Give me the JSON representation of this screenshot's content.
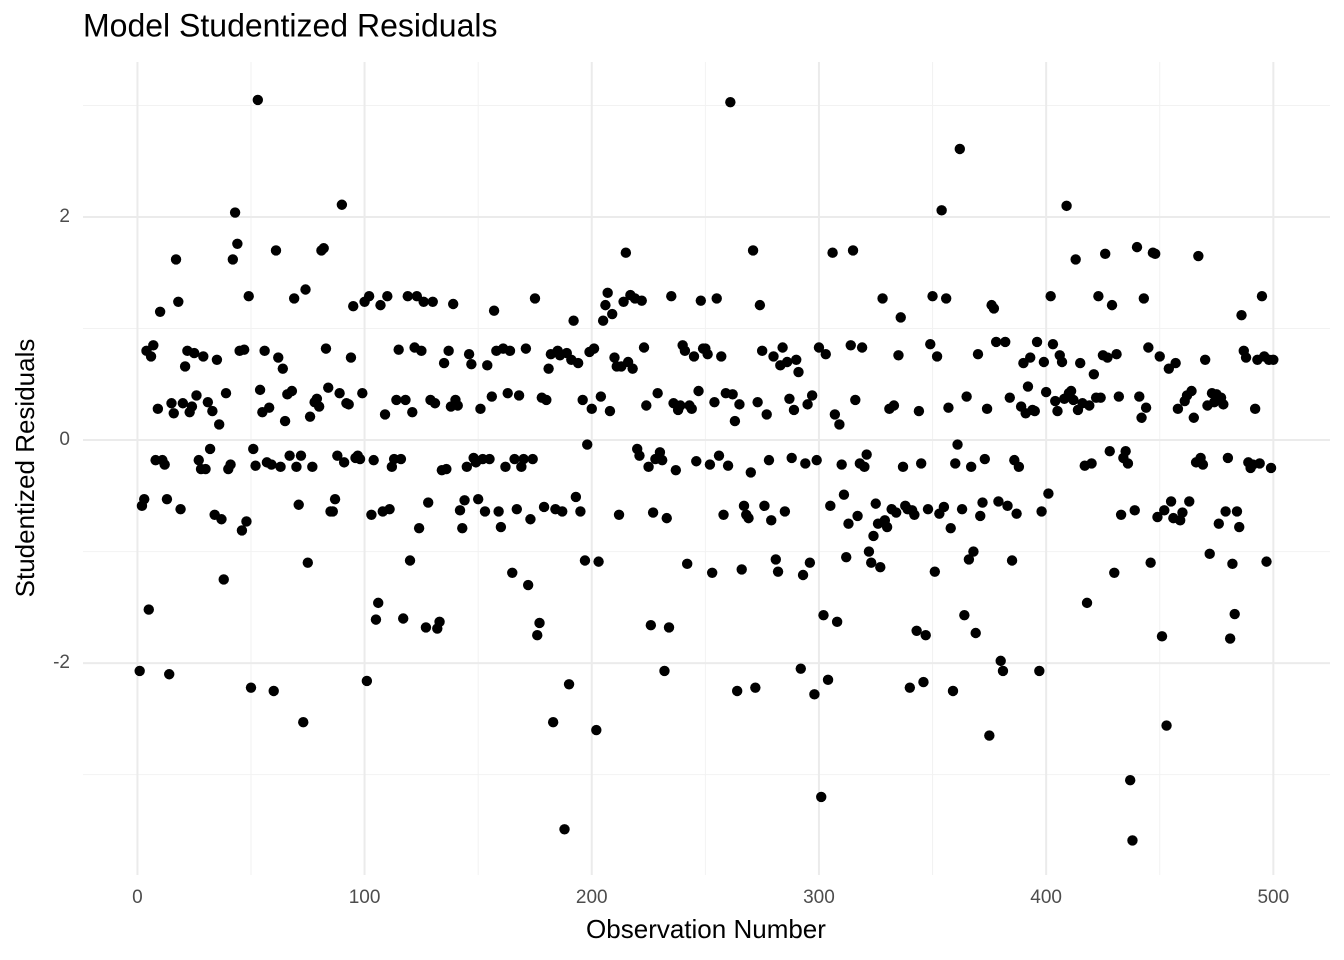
{
  "chart_data": {
    "type": "scatter",
    "title": "Model Studentized Residuals",
    "x_label": "Observation Number",
    "y_label": "Studentized Residuals",
    "color": "#000000",
    "grid": true,
    "xlim": [
      -23.95,
      524.95
    ],
    "ylim": [
      -3.9,
      3.39
    ],
    "xticks": [
      0,
      100,
      200,
      300,
      400,
      500
    ],
    "yticks": [
      -2,
      0,
      2
    ],
    "xminor": [
      50,
      150,
      250,
      350,
      450
    ],
    "yminor": [
      -3,
      -1,
      1,
      3
    ],
    "x": [
      1,
      2,
      3,
      4,
      5,
      6,
      7,
      8,
      9,
      10,
      11,
      12,
      13,
      14,
      15,
      16,
      17,
      18,
      19,
      20,
      21,
      22,
      23,
      24,
      25,
      26,
      27,
      28,
      29,
      30,
      31,
      32,
      33,
      34,
      35,
      36,
      37,
      38,
      39,
      40,
      41,
      42,
      43,
      44,
      45,
      46,
      47,
      48,
      49,
      50,
      51,
      52,
      53,
      54,
      55,
      56,
      57,
      58,
      59,
      60,
      61,
      62,
      63,
      64,
      65,
      66,
      67,
      68,
      69,
      70,
      71,
      72,
      73,
      74,
      75,
      76,
      77,
      78,
      79,
      80,
      81,
      82,
      83,
      84,
      85,
      86,
      87,
      88,
      89,
      90,
      91,
      92,
      93,
      94,
      95,
      96,
      97,
      98,
      99,
      100,
      101,
      102,
      103,
      104,
      105,
      106,
      107,
      108,
      109,
      110,
      111,
      112,
      113,
      114,
      115,
      116,
      117,
      118,
      119,
      120,
      121,
      122,
      123,
      124,
      125,
      126,
      127,
      128,
      129,
      130,
      131,
      132,
      133,
      134,
      135,
      136,
      137,
      138,
      139,
      140,
      141,
      142,
      143,
      144,
      145,
      146,
      147,
      148,
      149,
      150,
      151,
      152,
      153,
      154,
      155,
      156,
      157,
      158,
      159,
      160,
      161,
      162,
      163,
      164,
      165,
      166,
      167,
      168,
      169,
      170,
      171,
      172,
      173,
      174,
      175,
      176,
      177,
      178,
      179,
      180,
      181,
      182,
      183,
      184,
      185,
      186,
      187,
      188,
      189,
      190,
      191,
      192,
      193,
      194,
      195,
      196,
      197,
      198,
      199,
      200,
      201,
      202,
      203,
      204,
      205,
      206,
      207,
      208,
      209,
      210,
      211,
      212,
      213,
      214,
      215,
      216,
      217,
      218,
      219,
      220,
      221,
      222,
      223,
      224,
      225,
      226,
      227,
      228,
      229,
      230,
      231,
      232,
      233,
      234,
      235,
      236,
      237,
      238,
      239,
      240,
      241,
      242,
      243,
      244,
      245,
      246,
      247,
      248,
      249,
      250,
      251,
      252,
      253,
      254,
      255,
      256,
      257,
      258,
      259,
      260,
      261,
      262,
      263,
      264,
      265,
      266,
      267,
      268,
      269,
      270,
      271,
      272,
      273,
      274,
      275,
      276,
      277,
      278,
      279,
      280,
      281,
      282,
      283,
      284,
      285,
      286,
      287,
      288,
      289,
      290,
      291,
      292,
      293,
      294,
      295,
      296,
      297,
      298,
      299,
      300,
      301,
      302,
      303,
      304,
      305,
      306,
      307,
      308,
      309,
      310,
      311,
      312,
      313,
      314,
      315,
      316,
      317,
      318,
      319,
      320,
      321,
      322,
      323,
      324,
      325,
      326,
      327,
      328,
      329,
      330,
      331,
      332,
      333,
      334,
      335,
      336,
      337,
      338,
      339,
      340,
      341,
      342,
      343,
      344,
      345,
      346,
      347,
      348,
      349,
      350,
      351,
      352,
      353,
      354,
      355,
      356,
      357,
      358,
      359,
      360,
      361,
      362,
      363,
      364,
      365,
      366,
      367,
      368,
      369,
      370,
      371,
      372,
      373,
      374,
      375,
      376,
      377,
      378,
      379,
      380,
      381,
      382,
      383,
      384,
      385,
      386,
      387,
      388,
      389,
      390,
      391,
      392,
      393,
      394,
      395,
      396,
      397,
      398,
      399,
      400,
      401,
      402,
      403,
      404,
      405,
      406,
      407,
      408,
      409,
      410,
      411,
      412,
      413,
      414,
      415,
      416,
      417,
      418,
      419,
      420,
      421,
      422,
      423,
      424,
      425,
      426,
      427,
      428,
      429,
      430,
      431,
      432,
      433,
      434,
      435,
      436,
      437,
      438,
      439,
      440,
      441,
      442,
      443,
      444,
      445,
      446,
      447,
      448,
      449,
      450,
      451,
      452,
      453,
      454,
      455,
      456,
      457,
      458,
      459,
      460,
      461,
      462,
      463,
      464,
      465,
      466,
      467,
      468,
      469,
      470,
      471,
      472,
      473,
      474,
      475,
      476,
      477,
      478,
      479,
      480,
      481,
      482,
      483,
      484,
      485,
      486,
      487,
      488,
      489,
      490,
      491,
      492,
      493,
      494,
      495,
      496,
      497,
      498,
      499,
      500
    ],
    "values": [
      -2.07,
      -0.59,
      -0.53,
      0.8,
      -1.52,
      0.75,
      0.85,
      -0.18,
      0.28,
      1.15,
      -0.18,
      -0.22,
      -0.53,
      -2.1,
      0.33,
      0.24,
      1.62,
      1.24,
      -0.62,
      0.33,
      0.66,
      0.8,
      0.25,
      0.3,
      0.78,
      0.4,
      -0.18,
      -0.26,
      0.75,
      -0.26,
      0.34,
      -0.08,
      0.26,
      -0.67,
      0.72,
      0.14,
      -0.71,
      -1.25,
      0.42,
      -0.26,
      -0.22,
      1.62,
      2.04,
      1.76,
      0.8,
      -0.81,
      0.81,
      -0.73,
      1.29,
      -2.22,
      -0.08,
      -0.23,
      3.05,
      0.45,
      0.25,
      0.8,
      -0.2,
      0.29,
      -0.22,
      -2.25,
      1.7,
      0.74,
      -0.24,
      0.64,
      0.17,
      0.41,
      -0.14,
      0.44,
      1.27,
      -0.24,
      -0.58,
      -0.14,
      -2.53,
      1.35,
      -1.1,
      0.21,
      -0.24,
      0.34,
      0.37,
      0.3,
      1.7,
      1.72,
      0.82,
      0.47,
      -0.64,
      -0.64,
      -0.53,
      -0.14,
      0.42,
      2.11,
      -0.2,
      0.33,
      0.32,
      0.74,
      1.2,
      -0.16,
      -0.14,
      -0.17,
      0.42,
      1.24,
      -2.16,
      1.29,
      -0.67,
      -0.18,
      -1.61,
      -1.46,
      1.21,
      -0.64,
      0.23,
      1.29,
      -0.62,
      -0.24,
      -0.17,
      0.36,
      0.81,
      -0.17,
      -1.6,
      0.36,
      1.29,
      -1.08,
      0.25,
      0.83,
      1.29,
      -0.79,
      0.8,
      1.24,
      -1.68,
      -0.56,
      0.36,
      1.24,
      0.33,
      -1.69,
      -1.63,
      -0.27,
      0.69,
      -0.26,
      0.8,
      0.3,
      1.22,
      0.36,
      0.31,
      -0.63,
      -0.79,
      -0.54,
      -0.24,
      0.77,
      0.68,
      -0.16,
      -0.2,
      -0.53,
      0.28,
      -0.17,
      -0.64,
      0.67,
      -0.17,
      0.39,
      1.16,
      0.8,
      -0.64,
      -0.78,
      0.82,
      -0.24,
      0.42,
      0.8,
      -1.19,
      -0.17,
      -0.62,
      0.4,
      -0.24,
      -0.17,
      0.82,
      -1.3,
      -0.71,
      -0.17,
      1.27,
      -1.75,
      -1.64,
      0.38,
      -0.6,
      0.36,
      0.64,
      0.77,
      -2.53,
      -0.62,
      0.8,
      0.76,
      -0.64,
      -3.49,
      0.78,
      -2.19,
      0.72,
      1.07,
      -0.51,
      0.69,
      -0.64,
      0.36,
      -1.08,
      -0.04,
      0.79,
      0.28,
      0.82,
      -2.6,
      -1.09,
      0.39,
      1.07,
      1.21,
      1.32,
      0.26,
      1.13,
      0.74,
      0.66,
      -0.67,
      0.66,
      1.24,
      1.68,
      0.7,
      1.3,
      0.64,
      1.27,
      -0.08,
      -0.14,
      1.25,
      0.83,
      0.31,
      -0.24,
      -1.66,
      -0.65,
      -0.17,
      0.42,
      -0.11,
      -0.18,
      -2.07,
      -0.7,
      -1.68,
      1.29,
      0.33,
      -0.27,
      0.27,
      0.31,
      0.85,
      0.8,
      -1.11,
      0.31,
      0.28,
      0.75,
      -0.19,
      0.44,
      1.25,
      0.82,
      0.82,
      0.77,
      -0.22,
      -1.19,
      0.34,
      1.27,
      -0.14,
      0.75,
      -0.67,
      0.42,
      -0.23,
      3.03,
      0.41,
      0.17,
      -2.25,
      0.32,
      -1.16,
      -0.59,
      -0.67,
      -0.7,
      -0.29,
      1.7,
      -2.22,
      0.34,
      1.21,
      0.8,
      -0.59,
      0.23,
      -0.18,
      -0.72,
      0.75,
      -1.07,
      -1.18,
      0.67,
      0.83,
      -0.64,
      0.7,
      0.37,
      -0.16,
      0.27,
      0.72,
      0.61,
      -2.05,
      -1.21,
      -0.21,
      0.32,
      -1.1,
      0.4,
      -2.28,
      -0.18,
      0.83,
      -3.2,
      -1.57,
      0.77,
      -2.15,
      -0.59,
      1.68,
      0.23,
      -1.63,
      0.14,
      -0.22,
      -0.49,
      -1.05,
      -0.75,
      0.85,
      1.7,
      0.36,
      -0.68,
      -0.21,
      0.83,
      -0.24,
      -0.13,
      -1.0,
      -1.1,
      -0.86,
      -0.57,
      -0.75,
      -1.14,
      1.27,
      -0.72,
      -0.78,
      0.28,
      -0.62,
      0.31,
      -0.65,
      0.76,
      1.1,
      -0.24,
      -0.59,
      -0.62,
      -2.22,
      -0.63,
      -0.67,
      -1.71,
      0.26,
      -0.21,
      -2.17,
      -1.75,
      -0.62,
      0.86,
      1.29,
      -1.18,
      0.75,
      -0.66,
      2.06,
      -0.6,
      1.27,
      0.29,
      -0.79,
      -2.25,
      -0.21,
      -0.04,
      2.61,
      -0.62,
      -1.57,
      0.39,
      -1.07,
      -0.24,
      -1.0,
      -1.73,
      0.77,
      -0.68,
      -0.56,
      -0.17,
      0.28,
      -2.65,
      1.21,
      1.18,
      0.88,
      -0.55,
      -1.98,
      -2.07,
      0.88,
      -0.59,
      0.38,
      -1.08,
      -0.18,
      -0.66,
      -0.24,
      0.3,
      0.69,
      0.24,
      0.48,
      0.74,
      0.27,
      0.26,
      0.88,
      -2.07,
      -0.64,
      0.7,
      0.43,
      -0.48,
      1.29,
      0.86,
      0.35,
      0.26,
      0.76,
      0.7,
      0.37,
      2.1,
      0.42,
      0.44,
      0.36,
      1.62,
      0.27,
      0.69,
      0.33,
      -0.23,
      -1.46,
      0.31,
      -0.21,
      0.59,
      0.38,
      1.29,
      0.38,
      0.76,
      1.67,
      0.74,
      -0.1,
      1.21,
      -1.19,
      0.77,
      0.39,
      -0.67,
      -0.16,
      -0.1,
      -0.21,
      -3.05,
      -3.59,
      -0.63,
      1.73,
      0.39,
      0.2,
      1.27,
      0.29,
      0.83,
      -1.1,
      1.68,
      1.67,
      -0.69,
      0.75,
      -1.76,
      -0.63,
      -2.56,
      0.64,
      -0.55,
      -0.7,
      0.69,
      0.28,
      -0.72,
      -0.65,
      0.35,
      0.4,
      -0.55,
      0.44,
      0.2,
      -0.2,
      1.65,
      -0.16,
      -0.22,
      0.72,
      0.31,
      -1.02,
      0.42,
      0.34,
      0.41,
      -0.75,
      0.38,
      0.32,
      -0.64,
      -0.16,
      -1.78,
      -1.11,
      -1.56,
      -0.64,
      -0.78,
      1.12,
      0.8,
      0.74,
      -0.2,
      -0.25,
      -0.22,
      0.28,
      0.72,
      -0.21,
      1.29,
      0.75,
      -1.09,
      0.72,
      -0.25,
      0.72
    ]
  }
}
